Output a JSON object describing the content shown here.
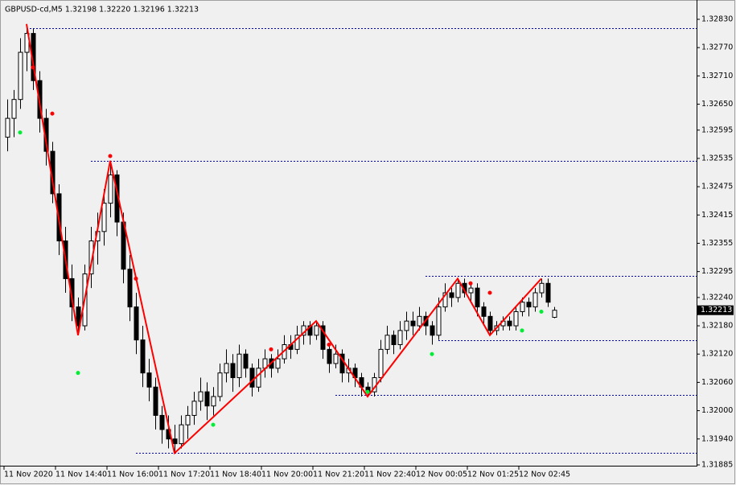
{
  "chart_data": {
    "type": "candlestick",
    "title": "GBPUSD-cd,M5  1.32198 1.32220 1.32196 1.32213",
    "candles": [
      [
        1.3258,
        1.3266,
        1.3255,
        1.3262
      ],
      [
        1.3262,
        1.3268,
        1.3258,
        1.3266
      ],
      [
        1.3266,
        1.3279,
        1.3264,
        1.3276
      ],
      [
        1.3276,
        1.3282,
        1.3272,
        1.328
      ],
      [
        1.328,
        1.3281,
        1.3268,
        1.327
      ],
      [
        1.327,
        1.3272,
        1.3259,
        1.3262
      ],
      [
        1.3262,
        1.3264,
        1.3252,
        1.3255
      ],
      [
        1.3255,
        1.3257,
        1.3244,
        1.3246
      ],
      [
        1.3246,
        1.3248,
        1.3233,
        1.3236
      ],
      [
        1.3236,
        1.3239,
        1.3225,
        1.3228
      ],
      [
        1.3228,
        1.3231,
        1.3219,
        1.3222
      ],
      [
        1.3222,
        1.3224,
        1.3216,
        1.3218
      ],
      [
        1.3218,
        1.3231,
        1.3217,
        1.3229
      ],
      [
        1.3229,
        1.3239,
        1.3226,
        1.3236
      ],
      [
        1.3236,
        1.3242,
        1.3231,
        1.3238
      ],
      [
        1.3238,
        1.3247,
        1.3235,
        1.3244
      ],
      [
        1.3244,
        1.3253,
        1.3241,
        1.325
      ],
      [
        1.325,
        1.3251,
        1.3237,
        1.324
      ],
      [
        1.324,
        1.3242,
        1.3227,
        1.323
      ],
      [
        1.323,
        1.3233,
        1.3219,
        1.3222
      ],
      [
        1.3222,
        1.3225,
        1.3212,
        1.3215
      ],
      [
        1.3215,
        1.3218,
        1.3205,
        1.3208
      ],
      [
        1.3208,
        1.3211,
        1.3202,
        1.3205
      ],
      [
        1.3205,
        1.3207,
        1.3196,
        1.3199
      ],
      [
        1.3199,
        1.3201,
        1.3193,
        1.3196
      ],
      [
        1.3196,
        1.3199,
        1.3192,
        1.3194
      ],
      [
        1.3194,
        1.3197,
        1.3191,
        1.3193
      ],
      [
        1.3193,
        1.3199,
        1.3192,
        1.3197
      ],
      [
        1.3197,
        1.3201,
        1.3194,
        1.3199
      ],
      [
        1.3199,
        1.3204,
        1.3197,
        1.3202
      ],
      [
        1.3202,
        1.3207,
        1.32,
        1.3204
      ],
      [
        1.3204,
        1.3206,
        1.3198,
        1.3201
      ],
      [
        1.3201,
        1.3205,
        1.3199,
        1.3203
      ],
      [
        1.3203,
        1.321,
        1.3202,
        1.3208
      ],
      [
        1.3208,
        1.3213,
        1.3206,
        1.321
      ],
      [
        1.321,
        1.3212,
        1.3204,
        1.3207
      ],
      [
        1.3207,
        1.3214,
        1.3205,
        1.3212
      ],
      [
        1.3212,
        1.3213,
        1.3207,
        1.3209
      ],
      [
        1.3209,
        1.321,
        1.3203,
        1.3205
      ],
      [
        1.3205,
        1.3211,
        1.3204,
        1.3209
      ],
      [
        1.3209,
        1.3213,
        1.3207,
        1.3211
      ],
      [
        1.3211,
        1.3212,
        1.3207,
        1.3209
      ],
      [
        1.3209,
        1.3213,
        1.3208,
        1.3211
      ],
      [
        1.3211,
        1.3216,
        1.321,
        1.3214
      ],
      [
        1.3214,
        1.3216,
        1.3211,
        1.3213
      ],
      [
        1.3213,
        1.3218,
        1.3212,
        1.3216
      ],
      [
        1.3216,
        1.3219,
        1.3214,
        1.3218
      ],
      [
        1.3218,
        1.3219,
        1.3214,
        1.3216
      ],
      [
        1.3216,
        1.3219,
        1.3215,
        1.3218
      ],
      [
        1.3218,
        1.3219,
        1.3211,
        1.3213
      ],
      [
        1.3213,
        1.3214,
        1.3208,
        1.321
      ],
      [
        1.321,
        1.3214,
        1.3209,
        1.3212
      ],
      [
        1.3212,
        1.3213,
        1.3206,
        1.3208
      ],
      [
        1.3208,
        1.3211,
        1.3206,
        1.3209
      ],
      [
        1.3209,
        1.321,
        1.3205,
        1.3207
      ],
      [
        1.3207,
        1.3208,
        1.3203,
        1.3205
      ],
      [
        1.3205,
        1.3206,
        1.3203,
        1.3204
      ],
      [
        1.3204,
        1.3208,
        1.3203,
        1.3207
      ],
      [
        1.3207,
        1.3215,
        1.3206,
        1.3213
      ],
      [
        1.3213,
        1.3218,
        1.3212,
        1.3216
      ],
      [
        1.3216,
        1.3217,
        1.3212,
        1.3214
      ],
      [
        1.3214,
        1.3219,
        1.3213,
        1.3217
      ],
      [
        1.3217,
        1.3221,
        1.3215,
        1.3219
      ],
      [
        1.3219,
        1.3221,
        1.3216,
        1.3218
      ],
      [
        1.3218,
        1.3222,
        1.3217,
        1.322
      ],
      [
        1.322,
        1.3221,
        1.3216,
        1.3218
      ],
      [
        1.3218,
        1.3219,
        1.3214,
        1.3216
      ],
      [
        1.3216,
        1.3224,
        1.3215,
        1.3222
      ],
      [
        1.3222,
        1.3227,
        1.3221,
        1.3225
      ],
      [
        1.3225,
        1.3226,
        1.3222,
        1.3224
      ],
      [
        1.3224,
        1.3228,
        1.3223,
        1.3227
      ],
      [
        1.3227,
        1.3228,
        1.3224,
        1.3225
      ],
      [
        1.3225,
        1.3227,
        1.3223,
        1.3226
      ],
      [
        1.3226,
        1.3227,
        1.322,
        1.3222
      ],
      [
        1.3222,
        1.3223,
        1.3218,
        1.322
      ],
      [
        1.322,
        1.3221,
        1.3216,
        1.3217
      ],
      [
        1.3217,
        1.3219,
        1.3216,
        1.3218
      ],
      [
        1.3218,
        1.322,
        1.3217,
        1.3219
      ],
      [
        1.3219,
        1.322,
        1.3217,
        1.3218
      ],
      [
        1.3218,
        1.3222,
        1.3217,
        1.3221
      ],
      [
        1.3221,
        1.3224,
        1.322,
        1.3223
      ],
      [
        1.3223,
        1.3224,
        1.322,
        1.3222
      ],
      [
        1.3222,
        1.3226,
        1.3221,
        1.3225
      ],
      [
        1.3225,
        1.3228,
        1.3224,
        1.3227
      ],
      [
        1.3227,
        1.3228,
        1.3222,
        1.3223
      ],
      [
        1.32198,
        1.3222,
        1.32196,
        1.32213
      ]
    ],
    "zigzag": {
      "color": "#ff0000",
      "x": [
        3,
        11,
        16,
        26,
        48,
        56,
        70,
        75,
        83
      ],
      "y": [
        1.3282,
        1.3216,
        1.3253,
        1.3191,
        1.3219,
        1.3203,
        1.3228,
        1.3216,
        1.3228
      ]
    },
    "dots": [
      {
        "color": "#ff0000",
        "x": [
          4,
          7,
          16,
          20,
          41,
          50,
          72,
          75
        ],
        "y": [
          1.32728,
          1.3263,
          1.3254,
          1.3228,
          1.3213,
          1.3214,
          1.3227,
          1.3225
        ]
      },
      {
        "color": "#00ee33",
        "x": [
          2,
          11,
          32,
          56,
          66,
          80,
          83
        ],
        "y": [
          1.3259,
          1.3208,
          1.3197,
          1.3204,
          1.3212,
          1.3217,
          1.3221
        ]
      }
    ],
    "levels": {
      "color": "#0000cc",
      "prices": [
        1.32812,
        1.3253,
        1.32286,
        1.3215,
        1.32034,
        1.3191
      ],
      "start": [
        3,
        13,
        65,
        67,
        51,
        20
      ]
    },
    "last_price": 1.32213,
    "ylim": [
      1.31885,
      1.3283
    ],
    "yticks": [
      {
        "value": 1.3283,
        "label": "1.32830"
      },
      {
        "value": 1.3277,
        "label": "1.32770"
      },
      {
        "value": 1.3271,
        "label": "1.32710"
      },
      {
        "value": 1.3265,
        "label": "1.32650"
      },
      1.32595,
      1.32535,
      1.32475,
      1.32415,
      1.32355,
      1.32295,
      {
        "value": 1.3224,
        "label": "1.32240"
      },
      {
        "value": 1.3218,
        "label": "1.32180"
      },
      {
        "value": 1.3212,
        "label": "1.32120"
      },
      {
        "value": 1.3206,
        "label": "1.32060"
      },
      {
        "value": 1.32,
        "label": "1.32000"
      },
      {
        "value": 1.3194,
        "label": "1.31940"
      },
      1.31885
    ],
    "xticks": [
      {
        "value": 0,
        "label": "11 Nov 2020"
      },
      {
        "value": 8,
        "label": "11 Nov 14:40"
      },
      {
        "value": 16,
        "label": "11 Nov 16:00"
      },
      {
        "value": 24,
        "label": "11 Nov 17:20"
      },
      {
        "value": 32,
        "label": "11 Nov 18:40"
      },
      {
        "value": 40,
        "label": "11 Nov 20:00"
      },
      {
        "value": 48,
        "label": "11 Nov 21:20"
      },
      {
        "value": 56,
        "label": "11 Nov 22:40"
      },
      {
        "value": 64,
        "label": "12 Nov 00:05"
      },
      {
        "value": 72,
        "label": "12 Nov 01:25"
      },
      {
        "value": 80,
        "label": "12 Nov 02:45"
      }
    ]
  }
}
